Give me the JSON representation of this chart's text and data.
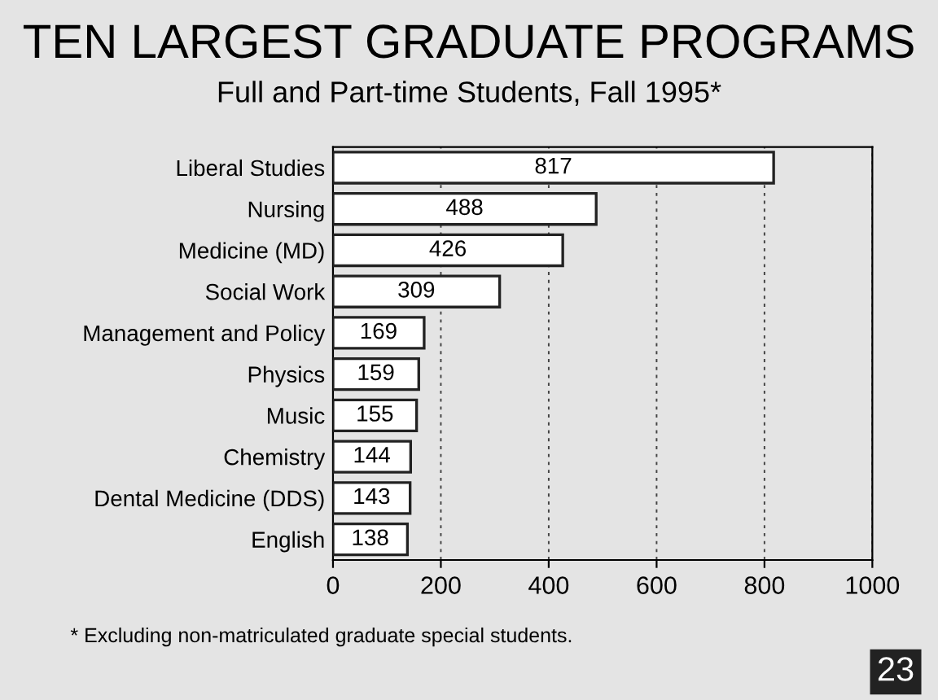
{
  "chart_data": {
    "type": "bar",
    "orientation": "horizontal",
    "title": "TEN LARGEST GRADUATE PROGRAMS",
    "subtitle": "Full and Part-time Students, Fall 1995*",
    "categories": [
      "Liberal Studies",
      "Nursing",
      "Medicine (MD)",
      "Social Work",
      "Management and Policy",
      "Physics",
      "Music",
      "Chemistry",
      "Dental Medicine (DDS)",
      "English"
    ],
    "values": [
      817,
      488,
      426,
      309,
      169,
      159,
      155,
      144,
      143,
      138
    ],
    "color": "#ffffff",
    "xlim": [
      0,
      1000
    ],
    "xticks": [
      0,
      200,
      400,
      600,
      800,
      1000
    ],
    "grid": "x",
    "data_labels": true,
    "annotations": [
      "* Excluding non-matriculated graduate special students.",
      "23"
    ]
  }
}
